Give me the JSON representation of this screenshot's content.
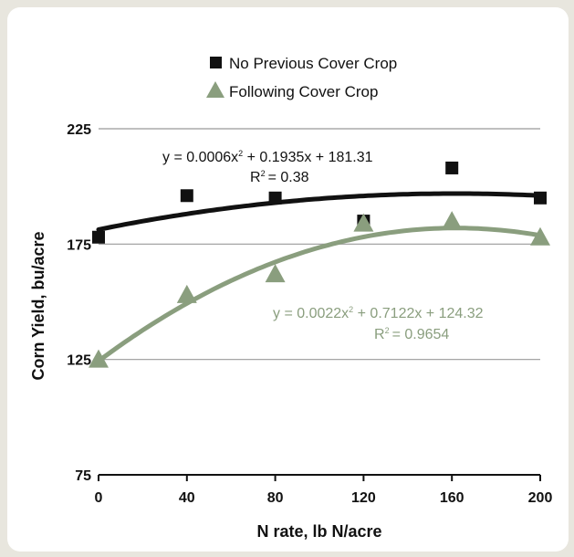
{
  "chart_data": {
    "type": "scatter",
    "xlabel": "N rate, lb N/acre",
    "ylabel": "Corn Yield, bu/acre",
    "xlim": [
      0,
      200
    ],
    "ylim": [
      75,
      225
    ],
    "x_ticks": [
      "0",
      "40",
      "80",
      "120",
      "160",
      "200"
    ],
    "y_ticks": [
      "75",
      "125",
      "175",
      "225"
    ],
    "grid": true,
    "legend_position": "top-center",
    "series": [
      {
        "name": "No Previous Cover Crop",
        "marker": "square",
        "color": "#111111",
        "x": [
          0,
          40,
          80,
          120,
          160,
          200
        ],
        "y": [
          178,
          196,
          195,
          185,
          208,
          195
        ],
        "trend": {
          "a": -0.0006,
          "b": 0.1935,
          "c": 181.31,
          "equation": "y = 0.0006x",
          "equation_rest": " + 0.1935x + 181.31",
          "r2": "= 0.38"
        }
      },
      {
        "name": "Following Cover Crop",
        "marker": "triangle",
        "color": "#8a9e7e",
        "x": [
          0,
          40,
          80,
          120,
          160,
          200
        ],
        "y": [
          125,
          153,
          162,
          184,
          185,
          178
        ],
        "trend": {
          "a": -0.0022,
          "b": 0.7122,
          "c": 124.32,
          "equation": "y = 0.0022x",
          "equation_rest": " + 0.7122x + 124.32",
          "r2": "= 0.9654"
        }
      }
    ]
  }
}
